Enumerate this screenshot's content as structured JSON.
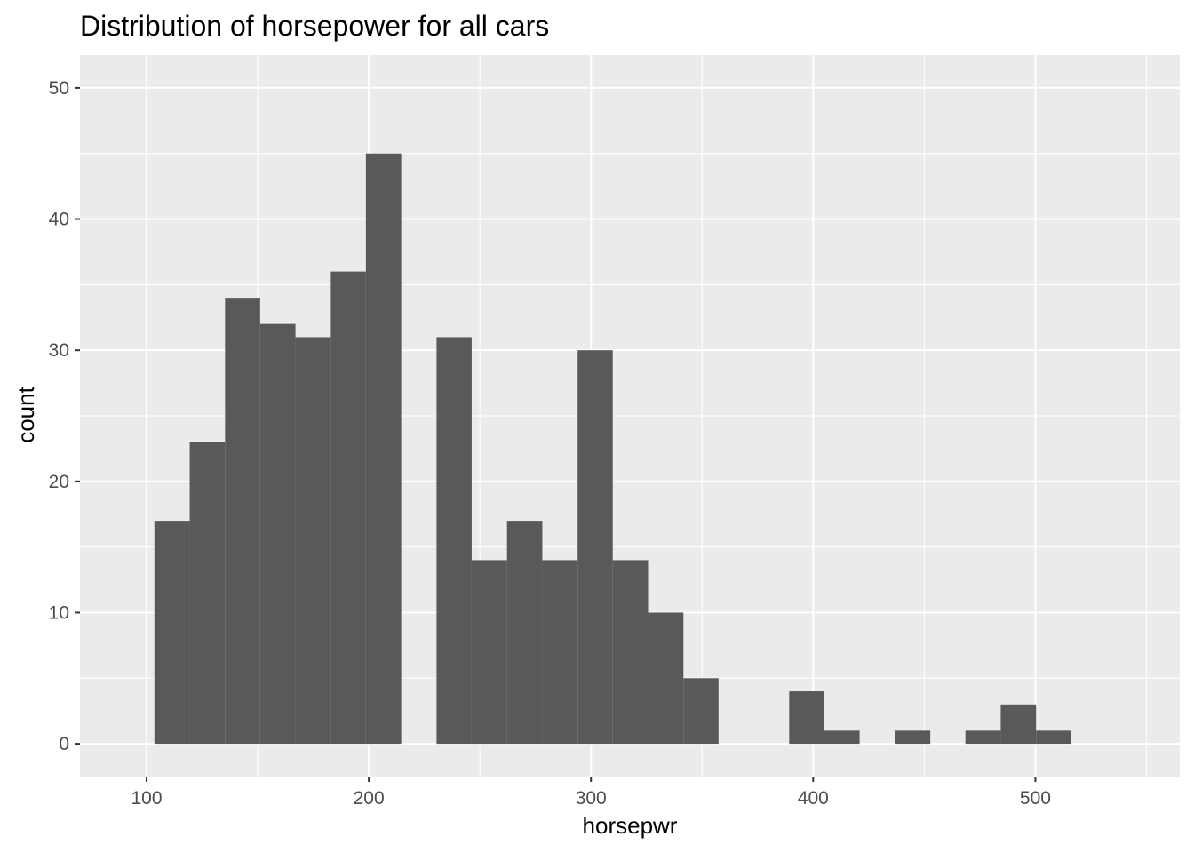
{
  "chart_data": {
    "type": "bar",
    "subtype": "histogram",
    "title": "Distribution of horsepower for all cars",
    "xlabel": "horsepwr",
    "ylabel": "count",
    "xlim": [
      70,
      565
    ],
    "ylim": [
      -2.5,
      52.5
    ],
    "x_ticks": [
      100,
      200,
      300,
      400,
      500
    ],
    "y_ticks": [
      0,
      10,
      20,
      30,
      40,
      50
    ],
    "grid": true,
    "colors": {
      "panel_background": "#ebebeb",
      "grid_line": "#ffffff",
      "bar_fill": "#595959",
      "tick_text": "#4d4d4d",
      "tick_mark": "#333333"
    },
    "bins": [
      {
        "x_start": 103.5,
        "x_end": 119.4,
        "count": 17
      },
      {
        "x_start": 119.4,
        "x_end": 135.3,
        "count": 23
      },
      {
        "x_start": 135.3,
        "x_end": 151.1,
        "count": 34
      },
      {
        "x_start": 151.1,
        "x_end": 167.0,
        "count": 32
      },
      {
        "x_start": 167.0,
        "x_end": 182.9,
        "count": 31
      },
      {
        "x_start": 182.9,
        "x_end": 198.7,
        "count": 36
      },
      {
        "x_start": 198.7,
        "x_end": 214.6,
        "count": 45
      },
      {
        "x_start": 214.6,
        "x_end": 230.5,
        "count": 0
      },
      {
        "x_start": 230.5,
        "x_end": 246.3,
        "count": 31
      },
      {
        "x_start": 246.3,
        "x_end": 262.2,
        "count": 14
      },
      {
        "x_start": 262.2,
        "x_end": 278.1,
        "count": 17
      },
      {
        "x_start": 278.1,
        "x_end": 294.0,
        "count": 14
      },
      {
        "x_start": 294.0,
        "x_end": 309.8,
        "count": 30
      },
      {
        "x_start": 309.8,
        "x_end": 325.7,
        "count": 14
      },
      {
        "x_start": 325.7,
        "x_end": 341.6,
        "count": 10
      },
      {
        "x_start": 341.6,
        "x_end": 357.4,
        "count": 5
      },
      {
        "x_start": 357.4,
        "x_end": 373.3,
        "count": 0
      },
      {
        "x_start": 373.3,
        "x_end": 389.2,
        "count": 0
      },
      {
        "x_start": 389.2,
        "x_end": 405.0,
        "count": 4
      },
      {
        "x_start": 405.0,
        "x_end": 420.9,
        "count": 1
      },
      {
        "x_start": 420.9,
        "x_end": 436.8,
        "count": 0
      },
      {
        "x_start": 436.8,
        "x_end": 452.7,
        "count": 1
      },
      {
        "x_start": 452.7,
        "x_end": 468.5,
        "count": 0
      },
      {
        "x_start": 468.5,
        "x_end": 484.4,
        "count": 1
      },
      {
        "x_start": 484.4,
        "x_end": 500.3,
        "count": 3
      },
      {
        "x_start": 500.3,
        "x_end": 516.1,
        "count": 1
      }
    ]
  }
}
